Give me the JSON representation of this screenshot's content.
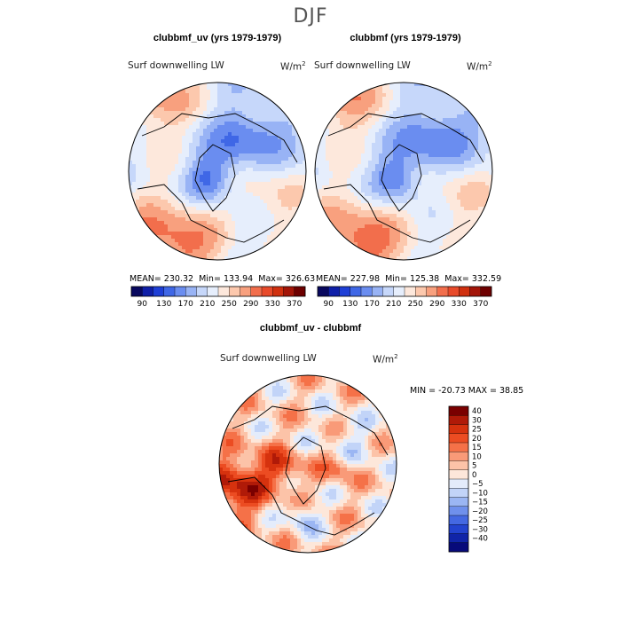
{
  "figure_title": "DJF",
  "chart_data": [
    {
      "type": "heatmap",
      "title": "clubbmf_uv (yrs 1979-1979)",
      "subtitle": "Surf downwelling LW",
      "units": "W/m",
      "units_sup": "2",
      "stats": {
        "mean_label": "MEAN=",
        "mean": "230.32",
        "min_label": "Min=",
        "min": "133.94",
        "max_label": "Max=",
        "max": "326.63"
      },
      "colorbar_ticks": [
        "90",
        "130",
        "170",
        "210",
        "250",
        "290",
        "330",
        "370"
      ],
      "colorbar_colors": [
        "#08085e",
        "#0f1fa8",
        "#1e3fd6",
        "#3f67e6",
        "#6a8df0",
        "#98b3f5",
        "#c6d7fa",
        "#e6eefc",
        "#fde8dc",
        "#fcc8ad",
        "#f8a07e",
        "#f26e4c",
        "#e84a2a",
        "#d0300f",
        "#a31508",
        "#6d0000"
      ],
      "projection": "north polar stereographic"
    },
    {
      "type": "heatmap",
      "title": "clubbmf (yrs 1979-1979)",
      "subtitle": "Surf downwelling LW",
      "units": "W/m",
      "units_sup": "2",
      "stats": {
        "mean_label": "MEAN=",
        "mean": "227.98",
        "min_label": "Min=",
        "min": "125.38",
        "max_label": "Max=",
        "max": "332.59"
      },
      "colorbar_ticks": [
        "90",
        "130",
        "170",
        "210",
        "250",
        "290",
        "330",
        "370"
      ],
      "colorbar_colors": [
        "#08085e",
        "#0f1fa8",
        "#1e3fd6",
        "#3f67e6",
        "#6a8df0",
        "#98b3f5",
        "#c6d7fa",
        "#e6eefc",
        "#fde8dc",
        "#fcc8ad",
        "#f8a07e",
        "#f26e4c",
        "#e84a2a",
        "#d0300f",
        "#a31508",
        "#6d0000"
      ],
      "projection": "north polar stereographic"
    },
    {
      "type": "heatmap",
      "title": "clubbmf_uv - clubbmf",
      "subtitle": "Surf downwelling LW",
      "units": "W/m",
      "units_sup": "2",
      "stats": {
        "min_label": "MIN =",
        "min": "-20.73",
        "max_label": "MAX =",
        "max": "38.85"
      },
      "colorbar_ticks": [
        "40",
        "30",
        "25",
        "20",
        "15",
        "10",
        "5",
        "0",
        "−5",
        "−10",
        "−15",
        "−20",
        "−25",
        "−30",
        "−40"
      ],
      "colorbar_colors": [
        "#7a0000",
        "#b01a08",
        "#d6320e",
        "#ec4c22",
        "#f57148",
        "#f99a78",
        "#fcc3a8",
        "#fde7da",
        "#e4ecfb",
        "#c2d4f8",
        "#9bb6f3",
        "#6f90ec",
        "#4468e2",
        "#2343cf",
        "#1024a8",
        "#070a7a"
      ],
      "projection": "north polar stereographic"
    }
  ]
}
